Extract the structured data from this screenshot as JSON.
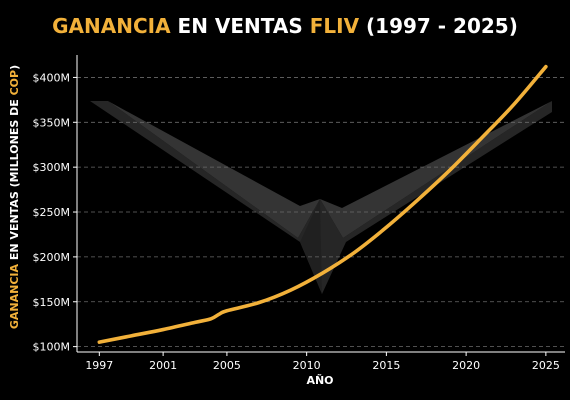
{
  "title": {
    "part1": "GANANCIA",
    "part2": " EN VENTAS ",
    "part3": "FLIV",
    "part4": " (1997 - 2025)"
  },
  "colors": {
    "accent": "#f2b13a",
    "text": "#ffffff",
    "background": "#000000",
    "grid": "#6a6a6a",
    "watermark": "#2e2e2e"
  },
  "watermark_icon": "fliv-logo-icon",
  "chart_data": {
    "type": "line",
    "xlabel": "AÑO",
    "ylabel": {
      "part1": "GANANCIA",
      "part2": " EN VENTAS (MILLONES DE ",
      "part3": "COP",
      "part4": ")"
    },
    "x_ticks": [
      1997,
      2001,
      2005,
      2010,
      2015,
      2020,
      2025
    ],
    "y_ticks": [
      100,
      150,
      200,
      250,
      300,
      350,
      400
    ],
    "y_tick_labels": [
      "$100M",
      "$150M",
      "$200M",
      "$250M",
      "$300M",
      "$350M",
      "$400M"
    ],
    "xlim": [
      1995.6,
      2026.2
    ],
    "ylim": [
      94,
      425
    ],
    "grid": "horizontal-dashed",
    "legend": "none",
    "series": [
      {
        "x": [
          1997,
          1999,
          2001,
          2003,
          2004,
          2004.5,
          2005,
          2007,
          2009,
          2011,
          2013,
          2015,
          2017,
          2019,
          2021,
          2023,
          2025
        ],
        "values": [
          105,
          112,
          119,
          127,
          131,
          136,
          140,
          149,
          163,
          182,
          205,
          233,
          264,
          297,
          333,
          370,
          412
        ]
      }
    ]
  }
}
